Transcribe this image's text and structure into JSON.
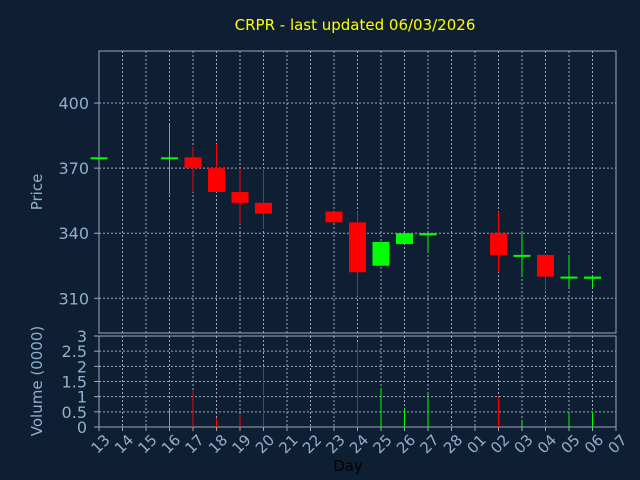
{
  "chart_data": {
    "type": "candlestick",
    "title": "CRPR - last updated 06/03/2026",
    "xlabel": "Day",
    "price_panel": {
      "ylabel": "Price",
      "yticks": [
        310,
        340,
        370,
        400
      ],
      "ylim": [
        294,
        424
      ]
    },
    "volume_panel": {
      "ylabel": "Volume (0000)",
      "yticks": [
        0,
        0.5,
        1,
        1.5,
        2,
        2.5,
        3
      ],
      "ytick_labels": [
        "0",
        "0.5",
        "1",
        "1.5",
        "2",
        "2.5",
        "3"
      ],
      "ylim": [
        0,
        3
      ]
    },
    "categories": [
      "13",
      "14",
      "15",
      "16",
      "17",
      "18",
      "19",
      "20",
      "21",
      "22",
      "23",
      "24",
      "25",
      "26",
      "27",
      "28",
      "01",
      "02",
      "03",
      "04",
      "05",
      "06",
      "07"
    ],
    "candles": [
      {
        "day": "13",
        "open": 375,
        "close": 375,
        "high": 375,
        "low": 375,
        "volume": 0
      },
      {
        "day": "16",
        "open": 375,
        "close": 375,
        "high": 390,
        "low": 358,
        "volume": 0.6
      },
      {
        "day": "17",
        "open": 375,
        "close": 370,
        "high": 380,
        "low": 359,
        "volume": 1.2
      },
      {
        "day": "18",
        "open": 370,
        "close": 359,
        "high": 381,
        "low": 359,
        "volume": 0.3
      },
      {
        "day": "19",
        "open": 359,
        "close": 354,
        "high": 370,
        "low": 344,
        "volume": 0.4
      },
      {
        "day": "20",
        "open": 354,
        "close": 349,
        "high": 370,
        "low": 342,
        "volume": 2.0
      },
      {
        "day": "23",
        "open": 350,
        "close": 345,
        "high": 350,
        "low": 345,
        "volume": 0
      },
      {
        "day": "24",
        "open": 345,
        "close": 322,
        "high": 350,
        "low": 311,
        "volume": 2.8
      },
      {
        "day": "25",
        "open": 325,
        "close": 336,
        "high": 336,
        "low": 325,
        "volume": 1.3
      },
      {
        "day": "26",
        "open": 335,
        "close": 340,
        "high": 340,
        "low": 335,
        "volume": 0.6
      },
      {
        "day": "27",
        "open": 339,
        "close": 340,
        "high": 340,
        "low": 331,
        "volume": 1.1
      },
      {
        "day": "02",
        "open": 340,
        "close": 330,
        "high": 350,
        "low": 322,
        "volume": 1.0
      },
      {
        "day": "03",
        "open": 330,
        "close": 330,
        "high": 340,
        "low": 320,
        "volume": 0.2
      },
      {
        "day": "04",
        "open": 330,
        "close": 320,
        "high": 330,
        "low": 313,
        "volume": 0.15
      },
      {
        "day": "05",
        "open": 320,
        "close": 320,
        "high": 330,
        "low": 315,
        "volume": 0.5
      },
      {
        "day": "06",
        "open": 319,
        "close": 320,
        "high": 320,
        "low": 315,
        "volume": 0.5
      }
    ],
    "colors": {
      "background": "#0f1f33",
      "up": "#00ff00",
      "down": "#ff0000",
      "grid": "#9aa9ba",
      "axis_text": "#8fb0cc",
      "title": "#ffff00",
      "xlabel": "#000000"
    },
    "grid": true
  }
}
